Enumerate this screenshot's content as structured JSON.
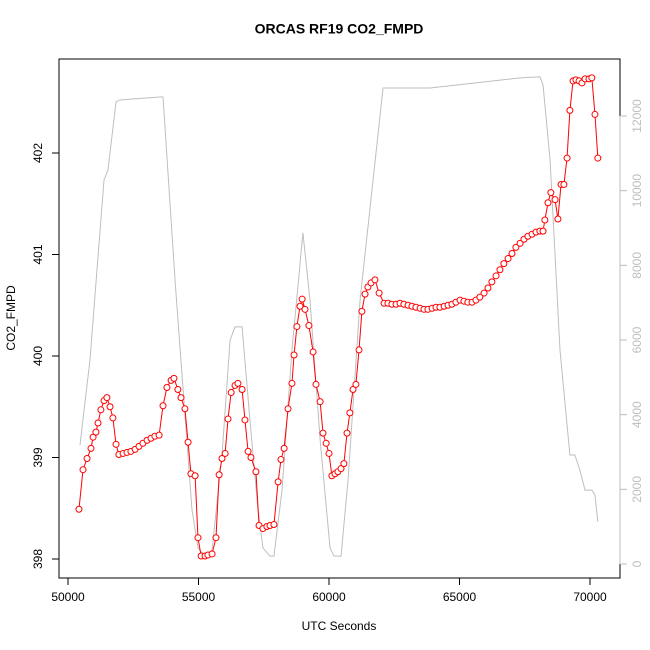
{
  "chart_data": {
    "type": "line",
    "title": "ORCAS RF19 CO2_FMPD",
    "x_label": "UTC Seconds",
    "y_label": "CO2_FMPD",
    "xlim": [
      49655,
      71149
    ],
    "ylim": [
      397.813,
      402.926
    ],
    "y2lim": [
      -375,
      13527
    ],
    "xticks": [
      50000,
      55000,
      60000,
      65000,
      70000
    ],
    "yticks": [
      398,
      399,
      400,
      401,
      402
    ],
    "y2ticks": [
      0,
      2000,
      4000,
      6000,
      8000,
      10000,
      12000
    ],
    "y2_color": "#bebebe",
    "series": [
      {
        "color": "#ff0000",
        "marker": "circle",
        "x": [
          50420,
          50575,
          50730,
          50880,
          50960,
          51070,
          51150,
          51260,
          51380,
          51490,
          51610,
          51720,
          51840,
          51950,
          52110,
          52260,
          52410,
          52570,
          52720,
          52870,
          53030,
          53180,
          53330,
          53490,
          53640,
          53790,
          53950,
          54060,
          54210,
          54330,
          54480,
          54600,
          54710,
          54870,
          54980,
          55100,
          55250,
          55360,
          55520,
          55670,
          55790,
          55900,
          56020,
          56130,
          56250,
          56400,
          56510,
          56670,
          56780,
          56900,
          57010,
          57200,
          57320,
          57470,
          57620,
          57740,
          57890,
          58050,
          58160,
          58280,
          58430,
          58580,
          58660,
          58770,
          58890,
          58970,
          59080,
          59230,
          59390,
          59500,
          59660,
          59770,
          59890,
          60000,
          60110,
          60230,
          60340,
          60460,
          60570,
          60690,
          60800,
          60920,
          61030,
          61150,
          61260,
          61380,
          61490,
          61610,
          61760,
          61920,
          62110,
          62260,
          62410,
          62570,
          62720,
          62870,
          63030,
          63180,
          63330,
          63490,
          63640,
          63790,
          63950,
          64100,
          64250,
          64410,
          64560,
          64710,
          64860,
          65020,
          65170,
          65320,
          65480,
          65630,
          65780,
          65940,
          66090,
          66240,
          66400,
          66550,
          66700,
          66860,
          67010,
          67160,
          67320,
          67470,
          67620,
          67780,
          67930,
          68080,
          68200,
          68270,
          68390,
          68500,
          68660,
          68770,
          68890,
          69000,
          69120,
          69230,
          69350,
          69460,
          69580,
          69690,
          69810,
          69960,
          70070,
          70190,
          70300
        ],
        "values": [
          398.49,
          398.88,
          398.99,
          399.09,
          399.2,
          399.25,
          399.34,
          399.47,
          399.56,
          399.59,
          399.5,
          399.39,
          399.13,
          399.03,
          399.04,
          399.05,
          399.06,
          399.08,
          399.11,
          399.14,
          399.17,
          399.19,
          399.21,
          399.22,
          399.51,
          399.69,
          399.76,
          399.78,
          399.67,
          399.59,
          399.48,
          399.15,
          398.84,
          398.82,
          398.21,
          398.03,
          398.03,
          398.04,
          398.05,
          398.21,
          398.83,
          398.99,
          399.04,
          399.38,
          399.64,
          399.71,
          399.73,
          399.67,
          399.37,
          399.06,
          399,
          398.86,
          398.33,
          398.3,
          398.32,
          398.33,
          398.34,
          398.76,
          398.98,
          399.09,
          399.48,
          399.73,
          400.01,
          400.29,
          400.49,
          400.56,
          400.46,
          400.3,
          400.04,
          399.72,
          399.55,
          399.24,
          399.14,
          399.04,
          398.82,
          398.84,
          398.86,
          398.89,
          398.94,
          399.24,
          399.44,
          399.67,
          399.72,
          400.06,
          400.44,
          400.61,
          400.68,
          400.72,
          400.75,
          400.62,
          400.52,
          400.52,
          400.51,
          400.51,
          400.52,
          400.51,
          400.5,
          400.49,
          400.48,
          400.47,
          400.46,
          400.46,
          400.47,
          400.48,
          400.48,
          400.49,
          400.5,
          400.51,
          400.53,
          400.55,
          400.54,
          400.53,
          400.53,
          400.55,
          400.58,
          400.62,
          400.67,
          400.73,
          400.79,
          400.85,
          400.91,
          400.96,
          401.01,
          401.07,
          401.11,
          401.15,
          401.18,
          401.2,
          401.22,
          401.23,
          401.23,
          401.34,
          401.51,
          401.61,
          401.54,
          401.35,
          401.69,
          401.69,
          401.95,
          402.42,
          402.71,
          402.72,
          402.71,
          402.69,
          402.73,
          402.73,
          402.74,
          402.38,
          401.95
        ]
      },
      {
        "color": "#bebebe",
        "axis": "y2",
        "x": [
          50460,
          50840,
          51380,
          51530,
          51840,
          51990,
          53520,
          53640,
          54100,
          54750,
          54980,
          55250,
          55520,
          55900,
          56210,
          56400,
          56670,
          56970,
          57280,
          57470,
          57740,
          57890,
          58200,
          58580,
          59000,
          59270,
          59660,
          60040,
          60190,
          60460,
          60730,
          61190,
          62070,
          62140,
          63870,
          67320,
          68080,
          68200,
          68470,
          68850,
          69230,
          69420,
          69610,
          69810,
          70070,
          70190,
          70300
        ],
        "values": [
          3190,
          5460,
          10290,
          10550,
          12380,
          12430,
          12510,
          12510,
          7610,
          1450,
          430,
          210,
          375,
          2920,
          6000,
          6350,
          6350,
          3860,
          1450,
          430,
          210,
          210,
          1980,
          5730,
          8870,
          7070,
          3320,
          430,
          210,
          210,
          2250,
          7070,
          12750,
          12750,
          12750,
          13020,
          13050,
          12830,
          10820,
          5730,
          2920,
          2920,
          2520,
          1980,
          1980,
          1850,
          1125
        ]
      }
    ]
  }
}
